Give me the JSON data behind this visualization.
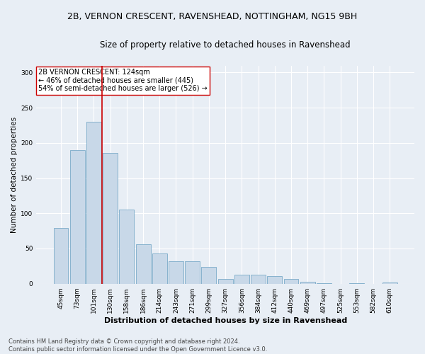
{
  "title_line1": "2B, VERNON CRESCENT, RAVENSHEAD, NOTTINGHAM, NG15 9BH",
  "title_line2": "Size of property relative to detached houses in Ravenshead",
  "xlabel": "Distribution of detached houses by size in Ravenshead",
  "ylabel": "Number of detached properties",
  "categories": [
    "45sqm",
    "73sqm",
    "101sqm",
    "130sqm",
    "158sqm",
    "186sqm",
    "214sqm",
    "243sqm",
    "271sqm",
    "299sqm",
    "327sqm",
    "356sqm",
    "384sqm",
    "412sqm",
    "440sqm",
    "469sqm",
    "497sqm",
    "525sqm",
    "553sqm",
    "582sqm",
    "610sqm"
  ],
  "values": [
    79,
    190,
    230,
    186,
    105,
    56,
    43,
    32,
    32,
    24,
    7,
    13,
    13,
    11,
    7,
    3,
    1,
    0,
    1,
    0,
    2
  ],
  "bar_color": "#c8d8e8",
  "bar_edge_color": "#7aaac8",
  "bar_edge_width": 0.6,
  "vline_color": "#cc0000",
  "annotation_text": "2B VERNON CRESCENT: 124sqm\n← 46% of detached houses are smaller (445)\n54% of semi-detached houses are larger (526) →",
  "annotation_box_color": "#ffffff",
  "annotation_box_edge": "#cc0000",
  "ylim": [
    0,
    310
  ],
  "yticks": [
    0,
    50,
    100,
    150,
    200,
    250,
    300
  ],
  "footer_line1": "Contains HM Land Registry data © Crown copyright and database right 2024.",
  "footer_line2": "Contains public sector information licensed under the Open Government Licence v3.0.",
  "bg_color": "#e8eef5",
  "grid_color": "#ffffff",
  "title_fontsize": 9,
  "subtitle_fontsize": 8.5,
  "xlabel_fontsize": 8,
  "ylabel_fontsize": 7.5,
  "tick_fontsize": 6.5,
  "annotation_fontsize": 7,
  "footer_fontsize": 6
}
